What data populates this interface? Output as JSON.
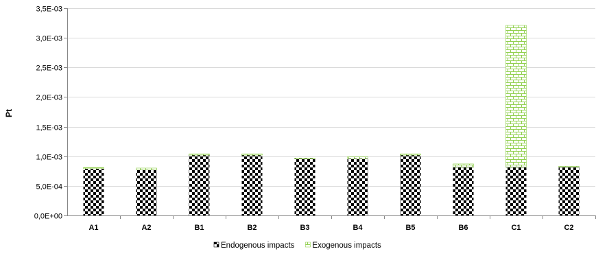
{
  "chart_data": {
    "type": "bar",
    "stacked": true,
    "title": "",
    "xlabel": "",
    "ylabel": "Pt",
    "ylim": [
      0,
      0.0035
    ],
    "yticks": [
      "0,0E+00",
      "5,0E-04",
      "1,0E-03",
      "1,5E-03",
      "2,0E-03",
      "2,5E-03",
      "3,0E-03",
      "3,5E-03"
    ],
    "ytick_values": [
      0,
      0.0005,
      0.001,
      0.0015,
      0.002,
      0.0025,
      0.003,
      0.0035
    ],
    "grid": true,
    "legend_position": "bottom",
    "categories": [
      "A1",
      "A2",
      "B1",
      "B2",
      "B3",
      "B4",
      "B5",
      "B6",
      "C1",
      "C2"
    ],
    "series": [
      {
        "name": "Endogenous impacts",
        "pattern": "checkerboard",
        "color": "#000000",
        "values": [
          0.00079,
          0.00077,
          0.00102,
          0.00102,
          0.00096,
          0.00096,
          0.00102,
          0.00082,
          0.00082,
          0.00082
        ]
      },
      {
        "name": "Exogenous impacts",
        "pattern": "brick",
        "color": "#92D050",
        "values": [
          2e-05,
          3e-05,
          2e-05,
          2e-05,
          1e-05,
          3e-05,
          2e-05,
          5e-05,
          0.00239,
          1e-05
        ]
      }
    ]
  }
}
